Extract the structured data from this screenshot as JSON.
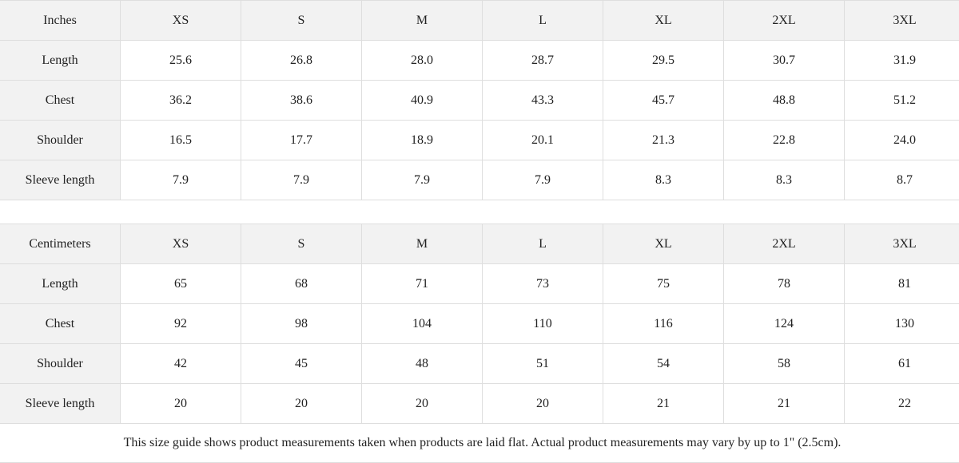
{
  "tables": [
    {
      "unit": "Inches",
      "sizes": [
        "XS",
        "S",
        "M",
        "L",
        "XL",
        "2XL",
        "3XL"
      ],
      "rows": [
        {
          "label": "Length",
          "values": [
            "25.6",
            "26.8",
            "28.0",
            "28.7",
            "29.5",
            "30.7",
            "31.9"
          ]
        },
        {
          "label": "Chest",
          "values": [
            "36.2",
            "38.6",
            "40.9",
            "43.3",
            "45.7",
            "48.8",
            "51.2"
          ]
        },
        {
          "label": "Shoulder",
          "values": [
            "16.5",
            "17.7",
            "18.9",
            "20.1",
            "21.3",
            "22.8",
            "24.0"
          ]
        },
        {
          "label": "Sleeve length",
          "values": [
            "7.9",
            "7.9",
            "7.9",
            "7.9",
            "8.3",
            "8.3",
            "8.7"
          ]
        }
      ]
    },
    {
      "unit": "Centimeters",
      "sizes": [
        "XS",
        "S",
        "M",
        "L",
        "XL",
        "2XL",
        "3XL"
      ],
      "rows": [
        {
          "label": "Length",
          "values": [
            "65",
            "68",
            "71",
            "73",
            "75",
            "78",
            "81"
          ]
        },
        {
          "label": "Chest",
          "values": [
            "92",
            "98",
            "104",
            "110",
            "116",
            "124",
            "130"
          ]
        },
        {
          "label": "Shoulder",
          "values": [
            "42",
            "45",
            "48",
            "51",
            "54",
            "58",
            "61"
          ]
        },
        {
          "label": "Sleeve length",
          "values": [
            "20",
            "20",
            "20",
            "20",
            "21",
            "21",
            "22"
          ]
        }
      ]
    }
  ],
  "footnote": "This size guide shows product measurements taken when products are laid flat.  Actual product measurements may vary by up to 1\" (2.5cm)."
}
